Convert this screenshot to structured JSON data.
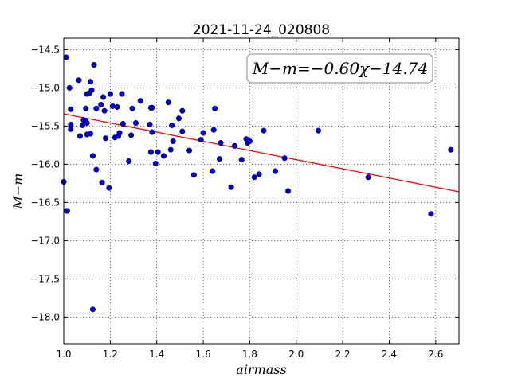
{
  "chart_data": {
    "type": "scatter",
    "title": "2021-11-24_020808",
    "xlabel": "airmass",
    "ylabel": "M−m",
    "xlim": [
      1.0,
      2.7
    ],
    "ylim": [
      -18.35,
      -14.35
    ],
    "x_ticks": [
      1.0,
      1.2,
      1.4,
      1.6,
      1.8,
      2.0,
      2.2,
      2.4,
      2.6
    ],
    "x_tick_labels": [
      "1.0",
      "1.2",
      "1.4",
      "1.6",
      "1.8",
      "2.0",
      "2.2",
      "2.4",
      "2.6"
    ],
    "y_ticks": [
      -14.5,
      -15.0,
      -15.5,
      -16.0,
      -16.5,
      -17.0,
      -17.5,
      -18.0
    ],
    "y_tick_labels": [
      "−14.5",
      "−15.0",
      "−15.5",
      "−16.0",
      "−16.5",
      "−17.0",
      "−17.5",
      "−18.0"
    ],
    "grid": true,
    "annotation": "M−m=−0.60χ−14.74",
    "fit": {
      "slope": -0.6,
      "intercept": -14.74,
      "color": "#ff0000"
    },
    "marker_color": "#0000cc",
    "points": [
      {
        "x": 1.0,
        "y": -16.23
      },
      {
        "x": 1.01,
        "y": -16.61
      },
      {
        "x": 1.015,
        "y": -16.61
      },
      {
        "x": 1.01,
        "y": -14.6
      },
      {
        "x": 1.025,
        "y": -15.0
      },
      {
        "x": 1.03,
        "y": -15.28
      },
      {
        "x": 1.03,
        "y": -15.48
      },
      {
        "x": 1.03,
        "y": -15.54
      },
      {
        "x": 1.065,
        "y": -14.9
      },
      {
        "x": 1.07,
        "y": -15.63
      },
      {
        "x": 1.08,
        "y": -15.49
      },
      {
        "x": 1.085,
        "y": -15.42
      },
      {
        "x": 1.095,
        "y": -15.27
      },
      {
        "x": 1.1,
        "y": -15.08
      },
      {
        "x": 1.095,
        "y": -15.43
      },
      {
        "x": 1.1,
        "y": -15.46
      },
      {
        "x": 1.1,
        "y": -15.61
      },
      {
        "x": 1.11,
        "y": -15.07
      },
      {
        "x": 1.115,
        "y": -14.92
      },
      {
        "x": 1.115,
        "y": -15.6
      },
      {
        "x": 1.12,
        "y": -15.03
      },
      {
        "x": 1.125,
        "y": -15.89
      },
      {
        "x": 1.125,
        "y": -17.9
      },
      {
        "x": 1.13,
        "y": -14.7
      },
      {
        "x": 1.14,
        "y": -15.27
      },
      {
        "x": 1.14,
        "y": -16.07
      },
      {
        "x": 1.16,
        "y": -15.22
      },
      {
        "x": 1.165,
        "y": -16.24
      },
      {
        "x": 1.17,
        "y": -15.12
      },
      {
        "x": 1.175,
        "y": -15.3
      },
      {
        "x": 1.18,
        "y": -15.66
      },
      {
        "x": 1.195,
        "y": -16.31
      },
      {
        "x": 1.2,
        "y": -15.08
      },
      {
        "x": 1.21,
        "y": -15.24
      },
      {
        "x": 1.22,
        "y": -15.65
      },
      {
        "x": 1.23,
        "y": -15.25
      },
      {
        "x": 1.235,
        "y": -15.63
      },
      {
        "x": 1.24,
        "y": -15.59
      },
      {
        "x": 1.25,
        "y": -15.08
      },
      {
        "x": 1.255,
        "y": -15.47
      },
      {
        "x": 1.28,
        "y": -15.96
      },
      {
        "x": 1.29,
        "y": -15.62
      },
      {
        "x": 1.295,
        "y": -15.27
      },
      {
        "x": 1.31,
        "y": -15.46
      },
      {
        "x": 1.33,
        "y": -15.17
      },
      {
        "x": 1.37,
        "y": -15.48
      },
      {
        "x": 1.375,
        "y": -15.84
      },
      {
        "x": 1.375,
        "y": -15.26
      },
      {
        "x": 1.38,
        "y": -15.26
      },
      {
        "x": 1.38,
        "y": -15.58
      },
      {
        "x": 1.395,
        "y": -15.99
      },
      {
        "x": 1.405,
        "y": -15.84
      },
      {
        "x": 1.43,
        "y": -15.89
      },
      {
        "x": 1.45,
        "y": -15.19
      },
      {
        "x": 1.46,
        "y": -15.81
      },
      {
        "x": 1.465,
        "y": -15.49
      },
      {
        "x": 1.47,
        "y": -15.7
      },
      {
        "x": 1.495,
        "y": -15.4
      },
      {
        "x": 1.51,
        "y": -15.3
      },
      {
        "x": 1.51,
        "y": -15.57
      },
      {
        "x": 1.54,
        "y": -15.82
      },
      {
        "x": 1.56,
        "y": -16.14
      },
      {
        "x": 1.59,
        "y": -15.68
      },
      {
        "x": 1.6,
        "y": -15.59
      },
      {
        "x": 1.64,
        "y": -16.09
      },
      {
        "x": 1.645,
        "y": -15.55
      },
      {
        "x": 1.65,
        "y": -15.27
      },
      {
        "x": 1.67,
        "y": -15.93
      },
      {
        "x": 1.675,
        "y": -15.72
      },
      {
        "x": 1.72,
        "y": -16.3
      },
      {
        "x": 1.735,
        "y": -15.76
      },
      {
        "x": 1.765,
        "y": -15.94
      },
      {
        "x": 1.785,
        "y": -15.67
      },
      {
        "x": 1.79,
        "y": -15.72
      },
      {
        "x": 1.8,
        "y": -15.7
      },
      {
        "x": 1.82,
        "y": -16.17
      },
      {
        "x": 1.84,
        "y": -16.13
      },
      {
        "x": 1.86,
        "y": -15.56
      },
      {
        "x": 1.91,
        "y": -16.09
      },
      {
        "x": 1.95,
        "y": -15.92
      },
      {
        "x": 1.965,
        "y": -16.35
      },
      {
        "x": 2.095,
        "y": -15.56
      },
      {
        "x": 2.31,
        "y": -16.17
      },
      {
        "x": 2.58,
        "y": -16.65
      },
      {
        "x": 2.665,
        "y": -15.81
      }
    ]
  }
}
